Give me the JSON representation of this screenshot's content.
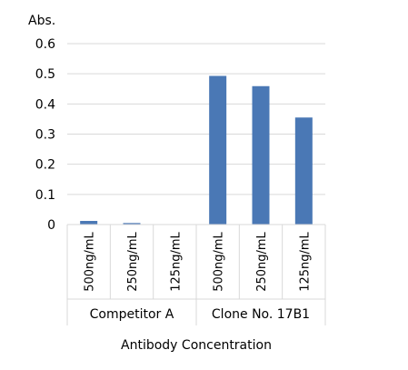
{
  "chart_data": {
    "type": "bar",
    "title": "",
    "ylabel": "Abs.",
    "xlabel": "Antibody Concentration",
    "ylim": [
      0,
      0.6
    ],
    "yticks": [
      "0",
      "0.1",
      "0.2",
      "0.3",
      "0.4",
      "0.5",
      "0.6"
    ],
    "grid": true,
    "bar_color": "#4a78b5",
    "groups": [
      {
        "name": "Competitor A",
        "categories": [
          "500ng/mL",
          "250ng/mL",
          "125ng/mL"
        ],
        "values": [
          0.012,
          0.005,
          0.0
        ]
      },
      {
        "name": "Clone No. 17B1",
        "categories": [
          "500ng/mL",
          "250ng/mL",
          "125ng/mL"
        ],
        "values": [
          0.493,
          0.459,
          0.355
        ]
      }
    ]
  }
}
